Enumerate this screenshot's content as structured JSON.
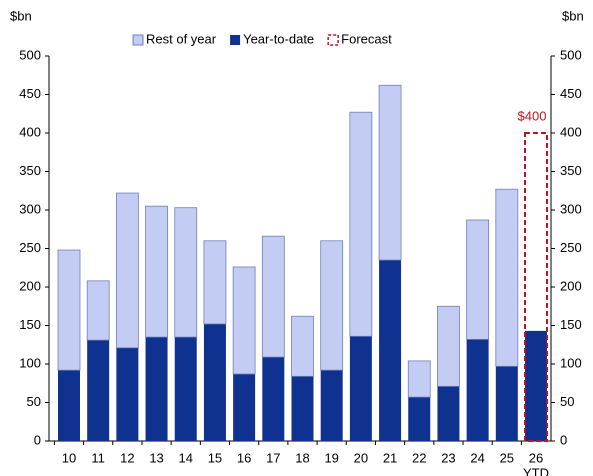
{
  "chart_data": {
    "type": "stacked_bar",
    "y_axis_label": "$bn",
    "y2_axis_label": "$bn",
    "categories": [
      "10",
      "11",
      "12",
      "13",
      "14",
      "15",
      "16",
      "17",
      "18",
      "19",
      "20",
      "21",
      "22",
      "23",
      "24",
      "25",
      "26"
    ],
    "last_category_note": "YTD",
    "series": [
      {
        "name": "Year-to-date",
        "color": "#0f3190",
        "values": [
          92,
          131,
          121,
          135,
          135,
          152,
          87,
          109,
          84,
          92,
          136,
          235,
          57,
          71,
          132,
          97,
          143
        ]
      },
      {
        "name": "Rest of year",
        "color": "#c3cdf4",
        "values": [
          156,
          77,
          201,
          170,
          168,
          108,
          139,
          157,
          78,
          168,
          291,
          227,
          47,
          104,
          155,
          230,
          null
        ]
      }
    ],
    "forecast": {
      "name": "Forecast",
      "color": "#c0141c",
      "values": [
        null,
        null,
        null,
        null,
        null,
        null,
        null,
        null,
        null,
        null,
        null,
        null,
        null,
        null,
        null,
        null,
        400
      ],
      "annotation": "$400"
    },
    "ylim": [
      0,
      500
    ],
    "yticks": [
      0,
      50,
      100,
      150,
      200,
      250,
      300,
      350,
      400,
      450,
      500
    ],
    "y2lim": [
      0,
      500
    ],
    "y2ticks": [
      0,
      50,
      100,
      150,
      200,
      250,
      300,
      350,
      400,
      450,
      500
    ]
  }
}
